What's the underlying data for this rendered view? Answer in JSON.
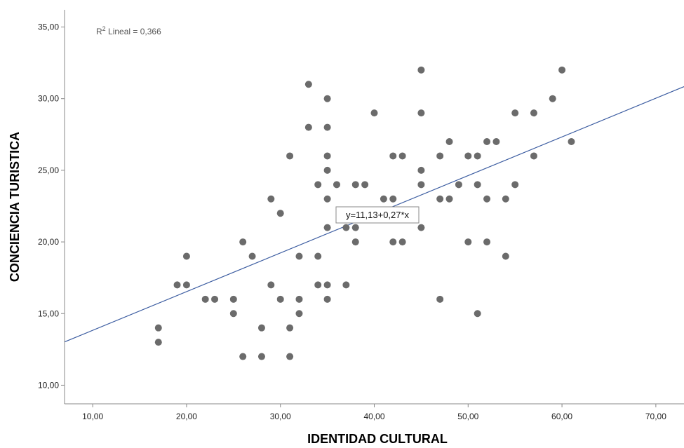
{
  "chart_data": {
    "type": "scatter",
    "xlabel": "IDENTIDAD CULTURAL",
    "ylabel": "CONCIENCIA TURISTICA",
    "xlim": [
      7,
      73
    ],
    "ylim": [
      8.7,
      36.2
    ],
    "xticks": [
      "10,00",
      "20,00",
      "30,00",
      "40,00",
      "50,00",
      "60,00",
      "70,00"
    ],
    "xtick_values": [
      10,
      20,
      30,
      40,
      50,
      60,
      70
    ],
    "yticks": [
      "10,00",
      "15,00",
      "20,00",
      "25,00",
      "30,00",
      "35,00"
    ],
    "ytick_values": [
      10,
      15,
      20,
      25,
      30,
      35
    ],
    "grid": false,
    "r2_label": {
      "prefix": "R",
      "superscript": "2",
      "text": " Lineal = 0,366"
    },
    "fit_line": {
      "intercept": 11.13,
      "slope": 0.27,
      "equation": "y=11,13+0,27*x"
    },
    "colors": {
      "points": "#6b6b6b",
      "fit_line": "#3a5ba0",
      "axis": "#888888"
    },
    "points": [
      [
        17,
        14
      ],
      [
        17,
        13
      ],
      [
        19,
        17
      ],
      [
        20,
        19
      ],
      [
        20,
        17
      ],
      [
        22,
        16
      ],
      [
        23,
        16
      ],
      [
        25,
        16
      ],
      [
        25,
        15
      ],
      [
        26,
        20
      ],
      [
        26,
        12
      ],
      [
        27,
        19
      ],
      [
        28,
        14
      ],
      [
        28,
        12
      ],
      [
        29,
        23
      ],
      [
        29,
        17
      ],
      [
        30,
        22
      ],
      [
        30,
        16
      ],
      [
        31,
        26
      ],
      [
        31,
        14
      ],
      [
        31,
        12
      ],
      [
        32,
        19
      ],
      [
        32,
        16
      ],
      [
        32,
        15
      ],
      [
        33,
        31
      ],
      [
        33,
        28
      ],
      [
        34,
        24
      ],
      [
        34,
        19
      ],
      [
        34,
        17
      ],
      [
        35,
        30
      ],
      [
        35,
        28
      ],
      [
        35,
        26
      ],
      [
        35,
        25
      ],
      [
        35,
        23
      ],
      [
        35,
        21
      ],
      [
        35,
        17
      ],
      [
        35,
        16
      ],
      [
        36,
        24
      ],
      [
        37,
        21
      ],
      [
        37,
        17
      ],
      [
        38,
        24
      ],
      [
        38,
        21
      ],
      [
        38,
        20
      ],
      [
        39,
        24
      ],
      [
        40,
        29
      ],
      [
        41,
        23
      ],
      [
        42,
        26
      ],
      [
        42,
        23
      ],
      [
        42,
        20
      ],
      [
        43,
        26
      ],
      [
        43,
        20
      ],
      [
        45,
        32
      ],
      [
        45,
        29
      ],
      [
        45,
        25
      ],
      [
        45,
        24
      ],
      [
        45,
        21
      ],
      [
        47,
        26
      ],
      [
        47,
        23
      ],
      [
        47,
        16
      ],
      [
        48,
        27
      ],
      [
        48,
        23
      ],
      [
        49,
        24
      ],
      [
        50,
        26
      ],
      [
        50,
        20
      ],
      [
        51,
        26
      ],
      [
        51,
        24
      ],
      [
        51,
        15
      ],
      [
        52,
        27
      ],
      [
        52,
        23
      ],
      [
        52,
        20
      ],
      [
        53,
        27
      ],
      [
        54,
        23
      ],
      [
        54,
        19
      ],
      [
        55,
        29
      ],
      [
        55,
        24
      ],
      [
        57,
        29
      ],
      [
        57,
        26
      ],
      [
        59,
        30
      ],
      [
        60,
        32
      ],
      [
        61,
        27
      ]
    ]
  }
}
